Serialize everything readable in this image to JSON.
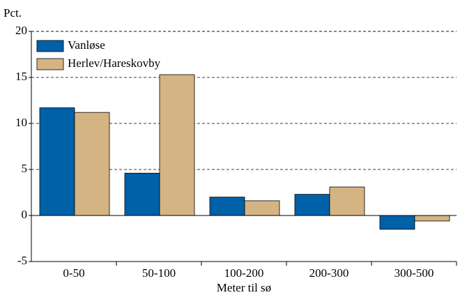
{
  "chart_data": {
    "type": "bar",
    "y_label": "Pct.",
    "x_label": "Meter til sø",
    "categories": [
      "0-50",
      "50-100",
      "100-200",
      "200-300",
      "300-500"
    ],
    "series": [
      {
        "name": "Vanløse",
        "color": "#0060a8",
        "values": [
          11.7,
          4.6,
          2.0,
          2.3,
          -1.5
        ]
      },
      {
        "name": "Herlev/Hareskovby",
        "color": "#d4b483",
        "values": [
          11.2,
          15.3,
          1.6,
          3.1,
          -0.6
        ]
      }
    ],
    "ylim": [
      -5,
      20
    ],
    "yticks": [
      -5,
      0,
      5,
      10,
      15,
      20
    ],
    "grid": true,
    "legend": "upper left"
  }
}
